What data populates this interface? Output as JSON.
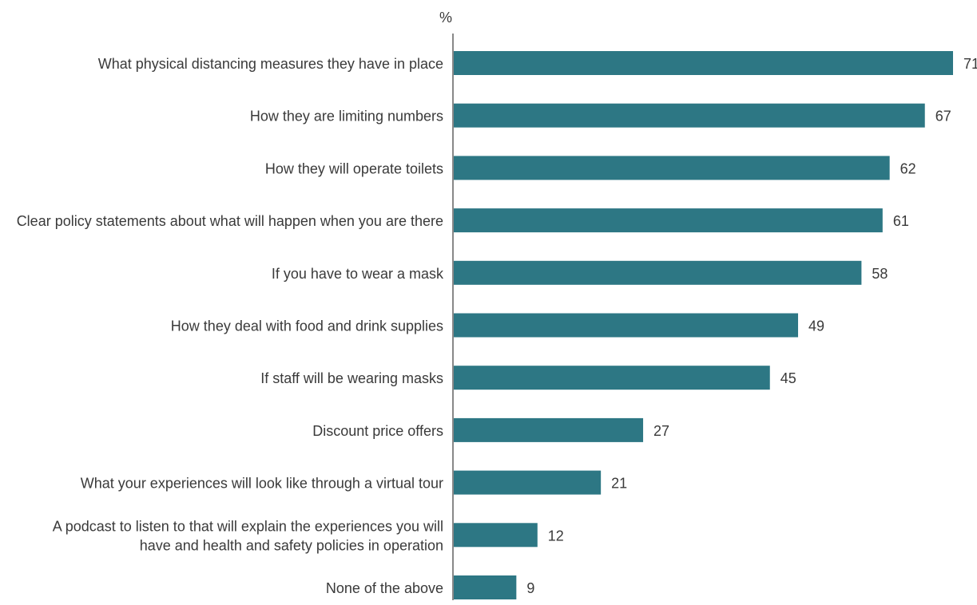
{
  "chart_data": {
    "type": "bar",
    "orientation": "horizontal",
    "unit_label": "%",
    "bar_color": "#2d7784",
    "axis_color": "#888888",
    "text_color": "#3a3a3a",
    "categories": [
      "What physical distancing measures they have in place",
      "How they are limiting numbers",
      "How they will operate toilets",
      "Clear policy statements about what will happen when you are there",
      "If you have to wear a mask",
      "How they deal with food and drink supplies",
      "If staff will be wearing masks",
      "Discount price offers",
      "What your experiences will look like through a virtual tour",
      "A podcast to listen to that will explain the experiences you will have and health and safety policies in operation",
      "None of the above"
    ],
    "category_lines": [
      [
        "What physical distancing measures they have in place"
      ],
      [
        "How they are limiting numbers"
      ],
      [
        "How they will operate toilets"
      ],
      [
        "Clear policy statements about what will happen when you are there"
      ],
      [
        "If you have to wear a mask"
      ],
      [
        "How they deal with food and drink supplies"
      ],
      [
        "If staff will be wearing masks"
      ],
      [
        "Discount price offers"
      ],
      [
        "What your experiences will look like through a virtual tour"
      ],
      [
        "A podcast to listen to that will explain the experiences you will",
        "have and health and safety policies in operation"
      ],
      [
        "None of the above"
      ]
    ],
    "values": [
      71,
      67,
      62,
      61,
      58,
      49,
      45,
      27,
      21,
      12,
      9
    ],
    "xlim": [
      0,
      71
    ],
    "grid": false,
    "legend": "none"
  }
}
